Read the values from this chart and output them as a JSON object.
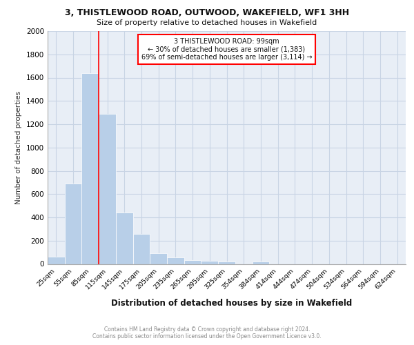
{
  "title1": "3, THISTLEWOOD ROAD, OUTWOOD, WAKEFIELD, WF1 3HH",
  "title2": "Size of property relative to detached houses in Wakefield",
  "xlabel": "Distribution of detached houses by size in Wakefield",
  "ylabel": "Number of detached properties",
  "bin_labels": [
    "25sqm",
    "55sqm",
    "85sqm",
    "115sqm",
    "145sqm",
    "175sqm",
    "205sqm",
    "235sqm",
    "265sqm",
    "295sqm",
    "325sqm",
    "354sqm",
    "384sqm",
    "414sqm",
    "444sqm",
    "474sqm",
    "504sqm",
    "534sqm",
    "564sqm",
    "594sqm",
    "624sqm"
  ],
  "bar_heights": [
    60,
    690,
    1640,
    1290,
    440,
    255,
    90,
    55,
    35,
    25,
    20,
    0,
    20,
    0,
    0,
    0,
    0,
    0,
    0,
    0,
    0
  ],
  "bar_color": "#b8cfe8",
  "bar_edge_color": "#b8cfe8",
  "grid_color": "#c8d4e4",
  "background_color": "#e8eef6",
  "annotation_line1": "3 THISTLEWOOD ROAD: 99sqm",
  "annotation_line2": "← 30% of detached houses are smaller (1,383)",
  "annotation_line3": "69% of semi-detached houses are larger (3,114) →",
  "footer1": "Contains HM Land Registry data © Crown copyright and database right 2024.",
  "footer2": "Contains public sector information licensed under the Open Government Licence v3.0.",
  "ylim": [
    0,
    2000
  ],
  "yticks": [
    0,
    200,
    400,
    600,
    800,
    1000,
    1200,
    1400,
    1600,
    1800,
    2000
  ]
}
